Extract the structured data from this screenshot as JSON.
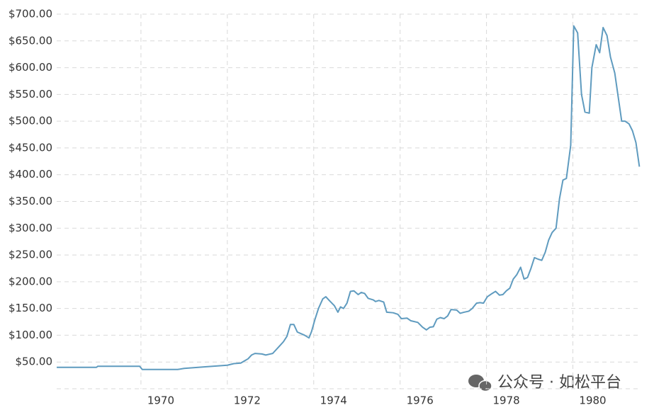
{
  "chart_data": {
    "type": "line",
    "watermark": "公众号 · 如松平台",
    "color": "#5f9bbf",
    "x": [
      1968.05,
      1968.97,
      1969.0,
      1969.97,
      1970.03,
      1970.85,
      1971.0,
      1971.49,
      1972.0,
      1972.15,
      1972.31,
      1972.48,
      1972.56,
      1972.64,
      1972.8,
      1972.89,
      1973.05,
      1973.21,
      1973.3,
      1973.38,
      1973.46,
      1973.54,
      1973.62,
      1973.79,
      1973.89,
      1973.95,
      1974.03,
      1974.11,
      1974.21,
      1974.28,
      1974.36,
      1974.48,
      1974.56,
      1974.62,
      1974.69,
      1974.77,
      1974.85,
      1974.93,
      1975.03,
      1975.1,
      1975.18,
      1975.26,
      1975.38,
      1975.43,
      1975.51,
      1975.62,
      1975.69,
      1975.84,
      1975.95,
      1976.03,
      1976.16,
      1976.25,
      1976.41,
      1976.52,
      1976.61,
      1976.69,
      1976.77,
      1976.85,
      1976.93,
      1977.02,
      1977.1,
      1977.18,
      1977.31,
      1977.39,
      1977.48,
      1977.59,
      1977.67,
      1977.77,
      1977.85,
      1977.93,
      1978.02,
      1978.13,
      1978.21,
      1978.3,
      1978.38,
      1978.46,
      1978.54,
      1978.62,
      1978.7,
      1978.79,
      1978.87,
      1978.95,
      1979.03,
      1979.11,
      1979.2,
      1979.28,
      1979.36,
      1979.44,
      1979.52,
      1979.61,
      1979.69,
      1979.77,
      1979.85,
      1979.95,
      1980.02,
      1980.11,
      1980.2,
      1980.28,
      1980.38,
      1980.44,
      1980.54,
      1980.62,
      1980.7,
      1980.79,
      1980.87,
      1980.97,
      1981.05,
      1981.13,
      1981.21,
      1981.3,
      1981.38,
      1981.46,
      1981.54
    ],
    "values": [
      40,
      40,
      42,
      42,
      36,
      36,
      38,
      41,
      44,
      47,
      48,
      56,
      63,
      66,
      65,
      63,
      66,
      80,
      88,
      98,
      120,
      120,
      106,
      100,
      95,
      107,
      130,
      150,
      168,
      172,
      165,
      155,
      143,
      153,
      150,
      160,
      182,
      183,
      176,
      180,
      178,
      169,
      166,
      163,
      165,
      162,
      143,
      142,
      139,
      131,
      132,
      127,
      124,
      115,
      110,
      115,
      116,
      130,
      133,
      131,
      136,
      148,
      147,
      141,
      143,
      145,
      150,
      160,
      161,
      160,
      172,
      178,
      182,
      175,
      176,
      183,
      188,
      205,
      213,
      227,
      205,
      208,
      225,
      245,
      242,
      240,
      255,
      278,
      292,
      300,
      355,
      390,
      393,
      455,
      678,
      665,
      550,
      517,
      515,
      600,
      643,
      628,
      675,
      660,
      620,
      590,
      545,
      500,
      500,
      495,
      482,
      460,
      415
    ],
    "xlim": [
      1968,
      1981.55
    ],
    "xticks": [
      1970,
      1972,
      1974,
      1976,
      1978,
      1980
    ],
    "ylim": [
      0,
      700
    ],
    "yticks": [
      {
        "value": 50,
        "label": "$50.00"
      },
      {
        "value": 100,
        "label": "$100.00"
      },
      {
        "value": 150,
        "label": "$150.00"
      },
      {
        "value": 200,
        "label": "$200.00"
      },
      {
        "value": 250,
        "label": "$250.00"
      },
      {
        "value": 300,
        "label": "$300.00"
      },
      {
        "value": 350,
        "label": "$350.00"
      },
      {
        "value": 400,
        "label": "$400.00"
      },
      {
        "value": 450,
        "label": "$450.00"
      },
      {
        "value": 500,
        "label": "$500.00"
      },
      {
        "value": 550,
        "label": "$550.00"
      },
      {
        "value": 600,
        "label": "$600.00"
      },
      {
        "value": 650,
        "label": "$650.00"
      },
      {
        "value": 700,
        "label": "$700.00"
      }
    ],
    "grid": true
  }
}
